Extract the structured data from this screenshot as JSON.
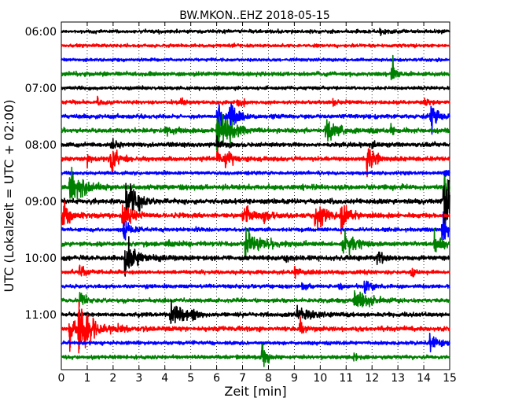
{
  "chart_data": {
    "type": "line",
    "title": "BW.MKON..EHZ 2018-05-15",
    "xlabel": "Zeit  [min]",
    "ylabel": "UTC (Lokalzeit = UTC + 02:00)",
    "xlim": [
      0,
      15
    ],
    "x_ticks": [
      0,
      1,
      2,
      3,
      4,
      5,
      6,
      7,
      8,
      9,
      10,
      11,
      12,
      13,
      14,
      15
    ],
    "x_tick_labels": [
      "0",
      "1",
      "2",
      "3",
      "4",
      "5",
      "6",
      "7",
      "8",
      "9",
      "10",
      "11",
      "12",
      "13",
      "14",
      "15"
    ],
    "grid": "vertical-dotted",
    "trace_interval_minutes": 15,
    "time_labels": [
      {
        "label": "06:00",
        "trace_index": 0
      },
      {
        "label": "07:00",
        "trace_index": 4
      },
      {
        "label": "08:00",
        "trace_index": 8
      },
      {
        "label": "09:00",
        "trace_index": 12
      },
      {
        "label": "10:00",
        "trace_index": 16
      },
      {
        "label": "11:00",
        "trace_index": 20
      }
    ],
    "color_cycle": [
      "#000000",
      "#ff0000",
      "#0000ff",
      "#008000"
    ],
    "traces": [
      {
        "start": "06:00",
        "noise": 1.6,
        "events": [
          [
            12.3,
            3,
            0.5
          ]
        ]
      },
      {
        "start": "06:15",
        "noise": 1.4,
        "events": []
      },
      {
        "start": "06:30",
        "noise": 1.4,
        "events": []
      },
      {
        "start": "06:45",
        "noise": 1.8,
        "events": [
          [
            12.75,
            16,
            0.3
          ]
        ]
      },
      {
        "start": "07:00",
        "noise": 1.5,
        "events": []
      },
      {
        "start": "07:15",
        "noise": 1.6,
        "events": [
          [
            1.4,
            5,
            0.2
          ],
          [
            4.6,
            4,
            0.3
          ],
          [
            6.8,
            6,
            0.4
          ],
          [
            10.5,
            4,
            0.3
          ],
          [
            14.0,
            6,
            0.2
          ]
        ]
      },
      {
        "start": "07:30",
        "noise": 1.8,
        "events": [
          [
            6.0,
            20,
            0.5
          ],
          [
            6.5,
            18,
            0.6
          ],
          [
            14.25,
            16,
            0.4
          ]
        ]
      },
      {
        "start": "07:45",
        "noise": 2.0,
        "events": [
          [
            6.0,
            28,
            0.8
          ],
          [
            6.5,
            6,
            0.5
          ],
          [
            10.2,
            12,
            0.8
          ],
          [
            12.7,
            6,
            0.3
          ],
          [
            4.0,
            3,
            1.0
          ]
        ]
      },
      {
        "start": "08:00",
        "noise": 2.0,
        "events": [
          [
            1.9,
            8,
            0.4
          ],
          [
            6.0,
            6,
            0.5
          ],
          [
            12.0,
            4,
            0.3
          ]
        ]
      },
      {
        "start": "08:15",
        "noise": 1.9,
        "events": [
          [
            1.0,
            5,
            0.3
          ],
          [
            1.9,
            16,
            0.6
          ],
          [
            6.0,
            8,
            0.5
          ],
          [
            6.3,
            8,
            0.6
          ],
          [
            11.8,
            14,
            0.6
          ]
        ]
      },
      {
        "start": "08:30",
        "noise": 1.5,
        "events": [
          [
            14.8,
            8,
            0.2
          ]
        ]
      },
      {
        "start": "08:45",
        "noise": 2.2,
        "events": [
          [
            0.3,
            18,
            1.0
          ],
          [
            0.7,
            5,
            0.4
          ],
          [
            14.8,
            28,
            0.3
          ]
        ]
      },
      {
        "start": "09:00",
        "noise": 2.2,
        "events": [
          [
            2.5,
            22,
            0.8
          ],
          [
            14.75,
            40,
            0.6
          ]
        ]
      },
      {
        "start": "09:15",
        "noise": 2.0,
        "events": [
          [
            0.05,
            24,
            0.4
          ],
          [
            2.35,
            16,
            0.6
          ],
          [
            7.0,
            12,
            0.6
          ],
          [
            7.8,
            8,
            0.5
          ],
          [
            9.8,
            20,
            0.6
          ],
          [
            10.8,
            18,
            0.5
          ]
        ]
      },
      {
        "start": "09:30",
        "noise": 1.6,
        "events": [
          [
            2.4,
            10,
            0.5
          ],
          [
            5.2,
            4,
            0.2
          ],
          [
            14.7,
            24,
            0.3
          ]
        ]
      },
      {
        "start": "09:45",
        "noise": 2.0,
        "events": [
          [
            7.1,
            14,
            1.0
          ],
          [
            10.85,
            12,
            0.9
          ],
          [
            14.4,
            10,
            0.6
          ],
          [
            4.0,
            3,
            1.0
          ]
        ]
      },
      {
        "start": "10:00",
        "noise": 2.1,
        "events": [
          [
            2.45,
            18,
            0.9
          ],
          [
            8.6,
            5,
            0.3
          ],
          [
            12.2,
            12,
            0.3
          ]
        ]
      },
      {
        "start": "10:15",
        "noise": 1.7,
        "events": [
          [
            0.7,
            12,
            0.3
          ],
          [
            9.0,
            5,
            0.4
          ],
          [
            13.5,
            6,
            0.3
          ]
        ]
      },
      {
        "start": "10:30",
        "noise": 1.6,
        "events": [
          [
            9.3,
            5,
            0.3
          ],
          [
            10.7,
            6,
            0.3
          ],
          [
            11.7,
            12,
            0.4
          ]
        ]
      },
      {
        "start": "10:45",
        "noise": 1.8,
        "events": [
          [
            0.7,
            10,
            0.4
          ],
          [
            11.3,
            10,
            1.0
          ]
        ]
      },
      {
        "start": "11:00",
        "noise": 1.9,
        "events": [
          [
            4.2,
            16,
            0.8
          ],
          [
            5.0,
            4,
            0.5
          ],
          [
            9.1,
            7,
            1.0
          ]
        ]
      },
      {
        "start": "11:15",
        "noise": 2.0,
        "events": [
          [
            0.3,
            14,
            0.5
          ],
          [
            0.65,
            22,
            1.2
          ],
          [
            9.2,
            8,
            0.4
          ]
        ]
      },
      {
        "start": "11:30",
        "noise": 1.6,
        "events": [
          [
            14.2,
            8,
            0.8
          ]
        ]
      },
      {
        "start": "11:45",
        "noise": 1.7,
        "events": [
          [
            7.75,
            14,
            0.3
          ],
          [
            11.3,
            5,
            0.2
          ]
        ]
      }
    ]
  }
}
